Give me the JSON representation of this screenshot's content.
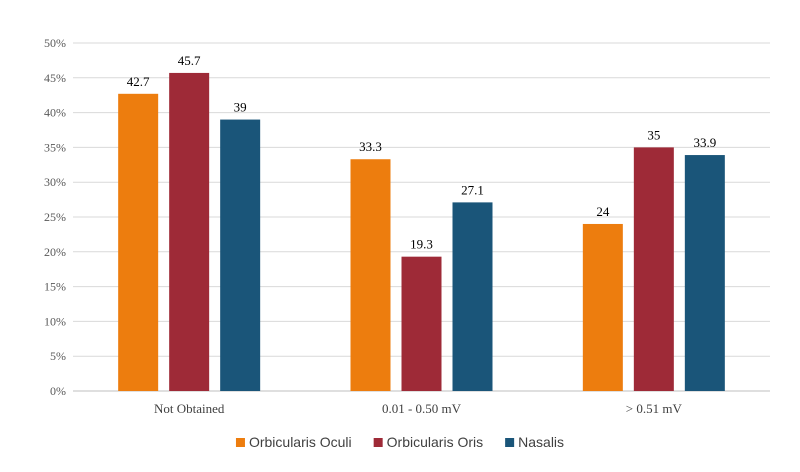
{
  "chart_data": {
    "type": "bar",
    "categories": [
      "Not Obtained",
      "0.01 - 0.50 mV",
      "> 0.51 mV"
    ],
    "series": [
      {
        "name": "Orbicularis Oculi",
        "values": [
          42.7,
          33.3,
          24
        ],
        "color": "#ED7D0E"
      },
      {
        "name": "Orbicularis Oris",
        "values": [
          45.7,
          19.3,
          35
        ],
        "color": "#9E2A37"
      },
      {
        "name": "Nasalis",
        "values": [
          39,
          27.1,
          33.9
        ],
        "color": "#1A5579"
      }
    ],
    "ylim": [
      0,
      50
    ],
    "yticks": [
      "0%",
      "5%",
      "10%",
      "15%",
      "20%",
      "25%",
      "30%",
      "35%",
      "40%",
      "45%",
      "50%"
    ],
    "grid": true,
    "legend_position": "bottom"
  }
}
